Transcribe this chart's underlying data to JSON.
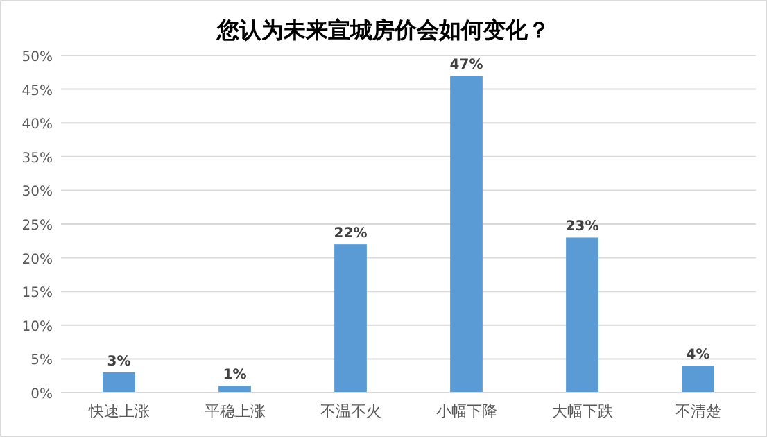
{
  "chart_data": {
    "type": "bar",
    "title": "您认为未来宣城房价会如何变化？",
    "categories": [
      "快速上涨",
      "平稳上涨",
      "不温不火",
      "小幅下降",
      "大幅下跌",
      "不清楚"
    ],
    "values": [
      3,
      1,
      22,
      47,
      23,
      4
    ],
    "value_labels": [
      "3%",
      "1%",
      "22%",
      "47%",
      "23%",
      "4%"
    ],
    "color": "#5b9bd5",
    "ylim": [
      0,
      50
    ],
    "yticks": [
      {
        "value": 0,
        "label": "0%"
      },
      {
        "value": 5,
        "label": "5%"
      },
      {
        "value": 10,
        "label": "10%"
      },
      {
        "value": 15,
        "label": "15%"
      },
      {
        "value": 20,
        "label": "20%"
      },
      {
        "value": 25,
        "label": "25%"
      },
      {
        "value": 30,
        "label": "30%"
      },
      {
        "value": 35,
        "label": "35%"
      },
      {
        "value": 40,
        "label": "40%"
      },
      {
        "value": 45,
        "label": "45%"
      },
      {
        "value": 50,
        "label": "50%"
      }
    ],
    "grid": "y"
  }
}
